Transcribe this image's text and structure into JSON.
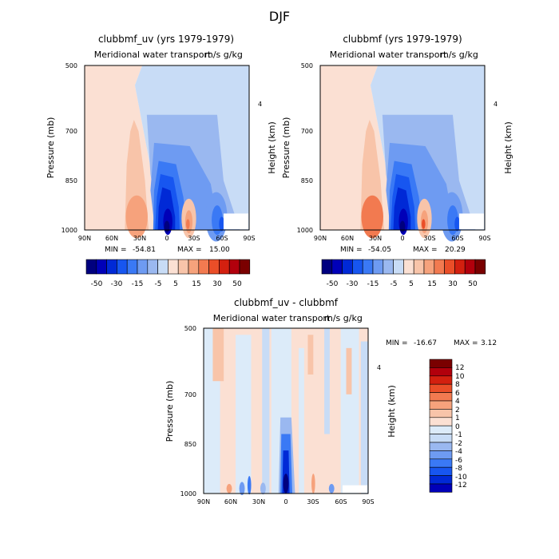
{
  "figure": {
    "main_title": "DJF"
  },
  "chart_data": [
    {
      "type": "heatmap",
      "title": "clubbmf_uv (yrs 1979-1979)",
      "subtitle": "Meridional water transport",
      "units": "m/s g/kg",
      "xlabel": "",
      "ylabel": "Pressure (mb)",
      "y2label": "Height (km)",
      "x_ticks": [
        "90N",
        "60N",
        "30N",
        "0",
        "30S",
        "60S",
        "90S"
      ],
      "y_ticks": [
        "500",
        "700",
        "850",
        "1000"
      ],
      "y2_ticks": [
        "4"
      ],
      "xlim": [
        90,
        -90
      ],
      "ylim": [
        1000,
        500
      ],
      "stats": {
        "min_label": "MIN =",
        "min": "-54.81",
        "max_label": "MAX =",
        "max": "15.00"
      },
      "colorbar": {
        "orientation": "horizontal",
        "labels": [
          "-50",
          "-30",
          "-15",
          "-5",
          "5",
          "15",
          "30",
          "50"
        ]
      },
      "features": [
        {
          "lat": -3,
          "p": 985,
          "value": -54
        },
        {
          "lat": 33,
          "p": 960,
          "value": 15
        },
        {
          "lat": -22,
          "p": 975,
          "value": 12
        },
        {
          "lat": 36,
          "p": 720,
          "value": 5
        },
        {
          "lat": -54,
          "p": 975,
          "value": -15
        }
      ]
    },
    {
      "type": "heatmap",
      "title": "clubbmf (yrs 1979-1979)",
      "subtitle": "Meridional water transport",
      "units": "m/s g/kg",
      "xlabel": "",
      "ylabel": "Pressure (mb)",
      "y2label": "Height (km)",
      "x_ticks": [
        "90N",
        "60N",
        "30N",
        "0",
        "30S",
        "60S",
        "90S"
      ],
      "y_ticks": [
        "500",
        "700",
        "850",
        "1000"
      ],
      "y2_ticks": [
        "4"
      ],
      "xlim": [
        90,
        -90
      ],
      "ylim": [
        1000,
        500
      ],
      "stats": {
        "min_label": "MIN =",
        "min": "-54.05",
        "max_label": "MAX =",
        "max": "20.29"
      },
      "colorbar": {
        "orientation": "horizontal",
        "labels": [
          "-50",
          "-30",
          "-15",
          "-5",
          "5",
          "15",
          "30",
          "50"
        ]
      },
      "features": [
        {
          "lat": -3,
          "p": 985,
          "value": -54
        },
        {
          "lat": 33,
          "p": 960,
          "value": 20
        },
        {
          "lat": -22,
          "p": 975,
          "value": 15
        },
        {
          "lat": 36,
          "p": 720,
          "value": 6
        },
        {
          "lat": -54,
          "p": 975,
          "value": -15
        }
      ]
    },
    {
      "type": "heatmap",
      "title": "clubbmf_uv - clubbmf",
      "subtitle": "Meridional water transport",
      "units": "m/s g/kg",
      "xlabel": "",
      "ylabel": "Pressure (mb)",
      "y2label": "Height (km)",
      "x_ticks": [
        "90N",
        "60N",
        "30N",
        "0",
        "30S",
        "60S",
        "90S"
      ],
      "y_ticks": [
        "500",
        "700",
        "850",
        "1000"
      ],
      "y2_ticks": [
        "4"
      ],
      "xlim": [
        90,
        -90
      ],
      "ylim": [
        1000,
        500
      ],
      "stats": {
        "min_label": "MIN =",
        "min": "-16.67",
        "max_label": "MAX =",
        "max": "3.12"
      },
      "colorbar": {
        "orientation": "vertical",
        "labels": [
          "12",
          "10",
          "8",
          "6",
          "4",
          "2",
          "1",
          "0",
          "-1",
          "-2",
          "-4",
          "-6",
          "-8",
          "-10",
          "-12"
        ]
      },
      "features": [
        {
          "lat": 0,
          "p": 975,
          "value": -16
        },
        {
          "lat": -30,
          "p": 965,
          "value": 3
        },
        {
          "lat": 40,
          "p": 975,
          "value": 2
        }
      ]
    }
  ],
  "colors": {
    "panel_scale": [
      "#00007f",
      "#0000b8",
      "#0029d6",
      "#1756f0",
      "#3a79f5",
      "#6e9bf2",
      "#9ab8f0",
      "#c8dcf6",
      "#fbe0d3",
      "#f8c4a9",
      "#f6a27c",
      "#f27a50",
      "#ea4e28",
      "#d3200f",
      "#b2000c",
      "#7a0000"
    ],
    "diff_scale": [
      "#7a0000",
      "#b2000c",
      "#d3200f",
      "#ea4e28",
      "#f27a50",
      "#f6a27c",
      "#f8c4a9",
      "#fbe0d3",
      "#dcebf9",
      "#c8dcf6",
      "#9ab8f0",
      "#6e9bf2",
      "#3a79f5",
      "#1756f0",
      "#0029d6",
      "#0000b8",
      "#00007f"
    ]
  }
}
